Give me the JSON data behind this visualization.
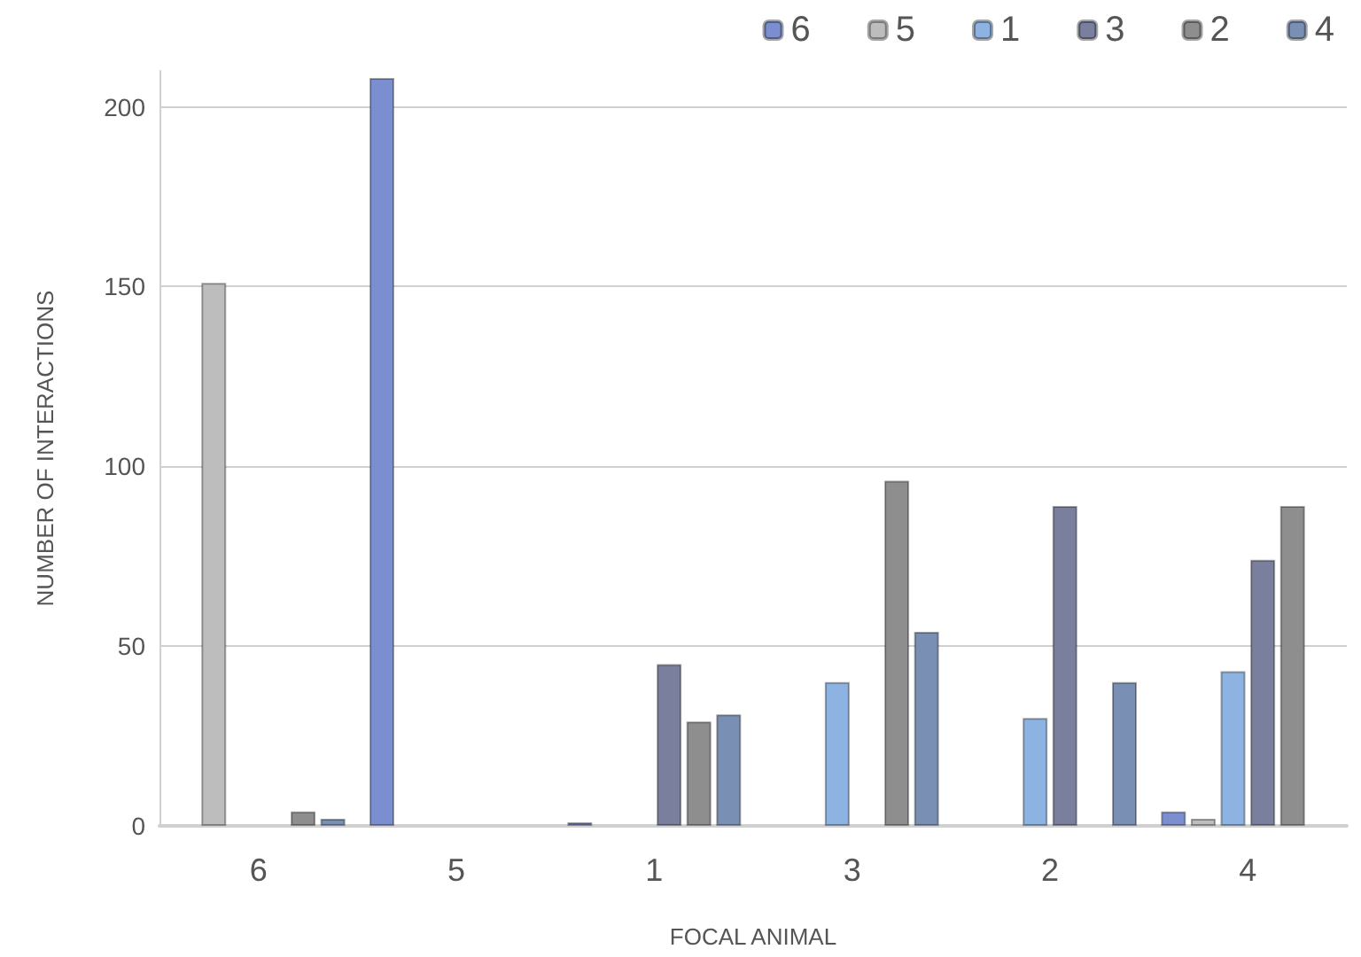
{
  "chart_data": {
    "type": "bar",
    "xlabel": "FOCAL ANIMAL",
    "ylabel": "NUMBER OF INTERACTIONS",
    "categories": [
      "6",
      "5",
      "1",
      "3",
      "2",
      "4"
    ],
    "series": [
      {
        "name": "6",
        "color": "#7b8fd0",
        "values": [
          null,
          208,
          1,
          null,
          null,
          4
        ]
      },
      {
        "name": "5",
        "color": "#bdbdbd",
        "values": [
          151,
          null,
          null,
          null,
          null,
          2
        ]
      },
      {
        "name": "1",
        "color": "#8db3e2",
        "values": [
          null,
          null,
          null,
          40,
          30,
          43
        ]
      },
      {
        "name": "3",
        "color": "#7a7f9e",
        "values": [
          null,
          null,
          45,
          null,
          89,
          74
        ]
      },
      {
        "name": "2",
        "color": "#8e8e8e",
        "values": [
          4,
          null,
          29,
          96,
          null,
          89
        ]
      },
      {
        "name": "4",
        "color": "#7a8fb4",
        "values": [
          2,
          null,
          31,
          54,
          40,
          null
        ]
      }
    ],
    "ylim": [
      0,
      210
    ],
    "yticks": [
      0,
      50,
      100,
      150,
      200
    ],
    "grid": "y",
    "legend": "top right"
  }
}
